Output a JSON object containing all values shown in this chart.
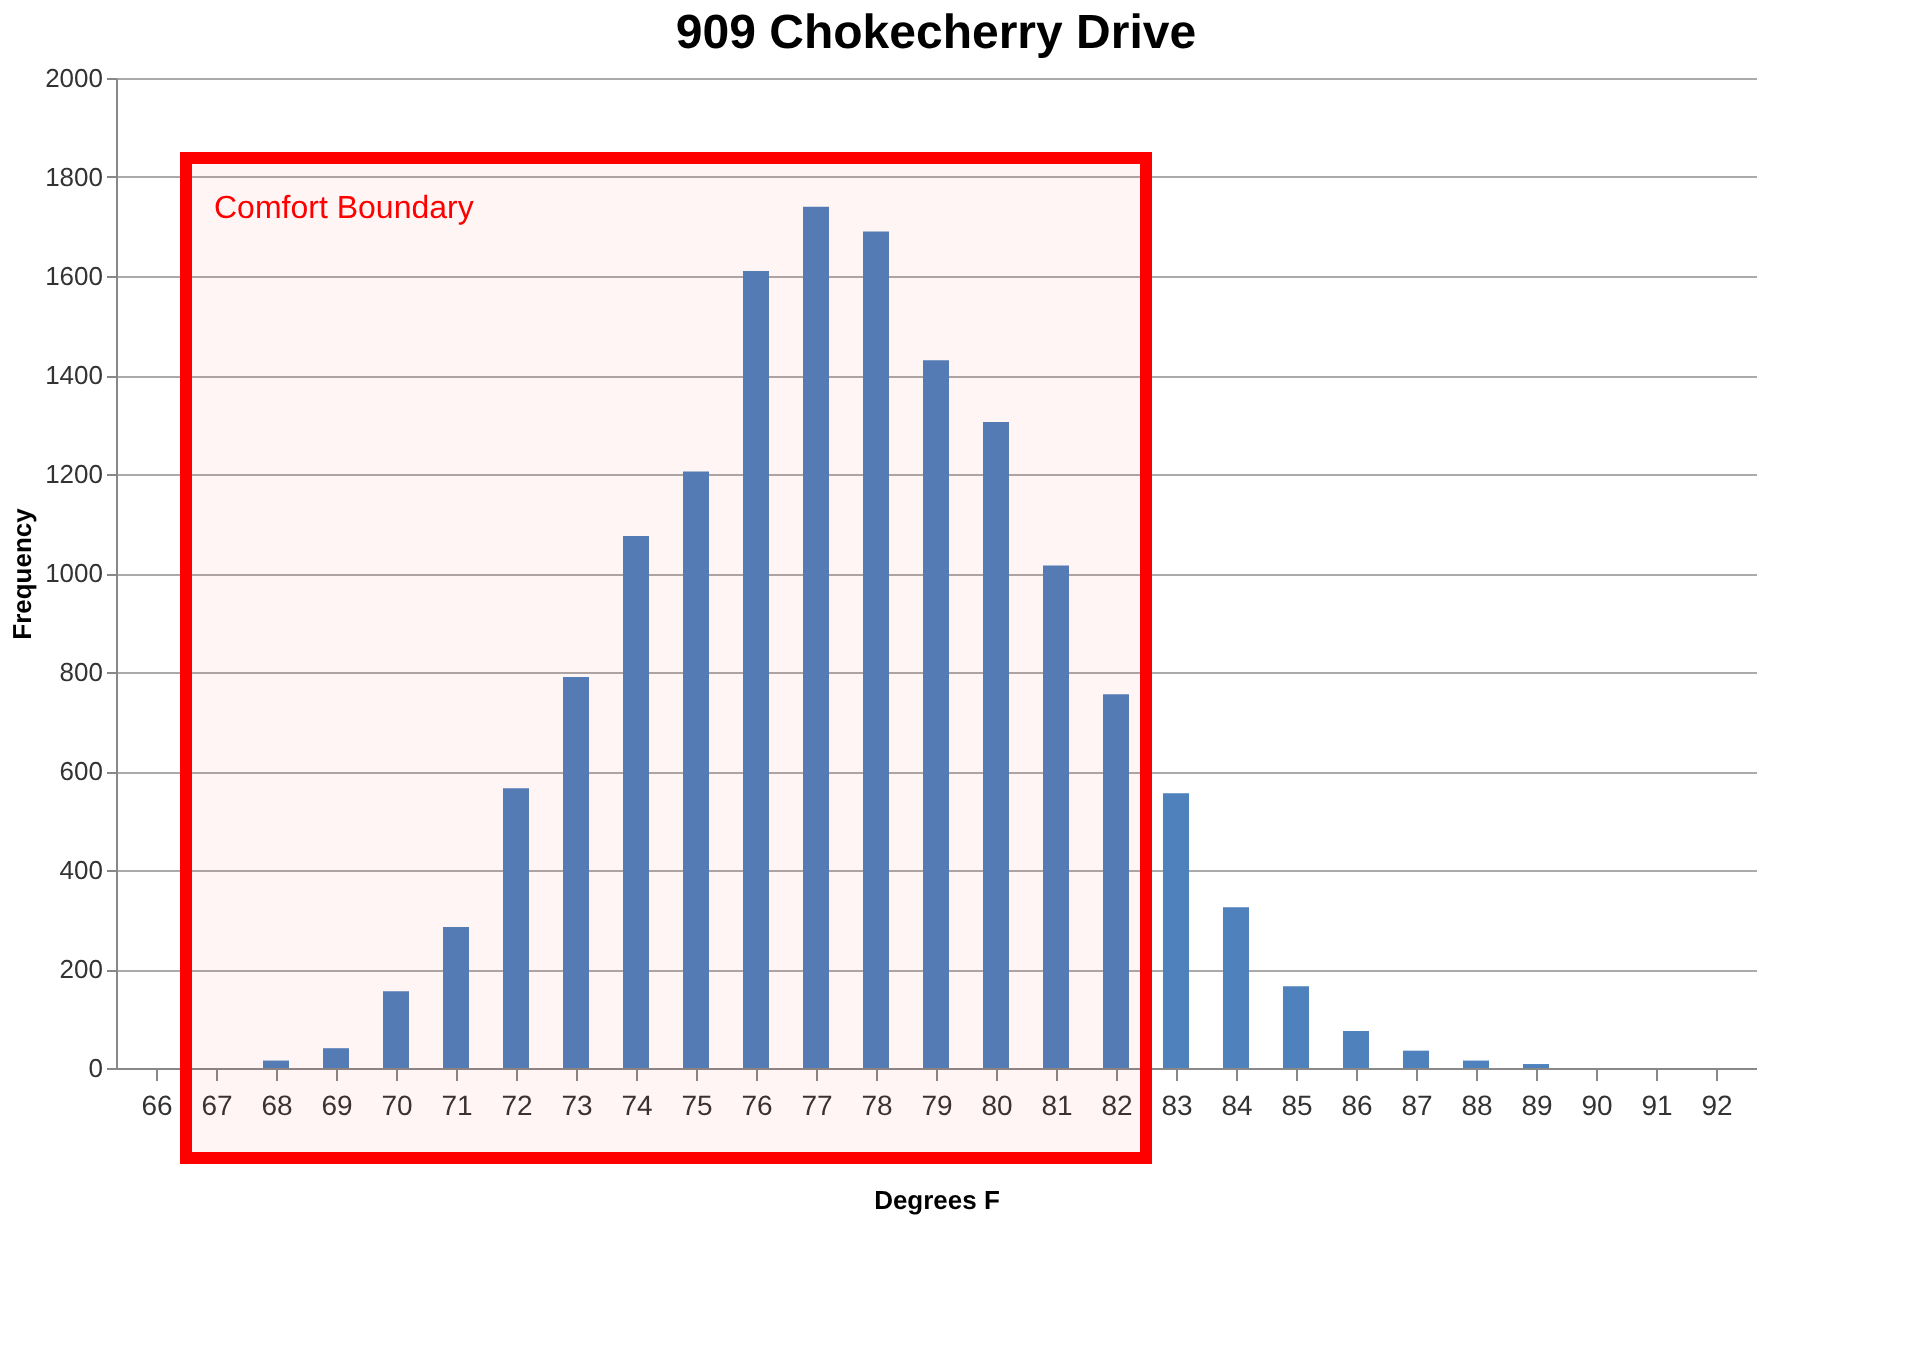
{
  "chart_data": {
    "type": "bar",
    "title": "909 Chokecherry Drive",
    "xlabel": "Degrees F",
    "ylabel": "Frequency",
    "categories": [
      "66",
      "67",
      "68",
      "69",
      "70",
      "71",
      "72",
      "73",
      "74",
      "75",
      "76",
      "77",
      "78",
      "79",
      "80",
      "81",
      "82",
      "83",
      "84",
      "85",
      "86",
      "87",
      "88",
      "89",
      "90",
      "91",
      "92"
    ],
    "series": [
      {
        "color": "#4f81bd",
        "values": [
          0,
          0,
          15,
          40,
          155,
          285,
          565,
          790,
          1075,
          1205,
          1610,
          1740,
          1690,
          1430,
          1305,
          1015,
          755,
          555,
          325,
          165,
          75,
          35,
          15,
          8,
          0,
          0,
          0
        ]
      }
    ],
    "ylim": [
      0,
      2000
    ],
    "yticks": [
      0,
      200,
      400,
      600,
      800,
      1000,
      1200,
      1400,
      1600,
      1800,
      2000
    ],
    "grid": "y",
    "legend": false,
    "bands": [
      {
        "axis": "x",
        "from": "67",
        "to": "82",
        "label": "Comfort Boundary",
        "color": "#ff0000"
      }
    ]
  }
}
